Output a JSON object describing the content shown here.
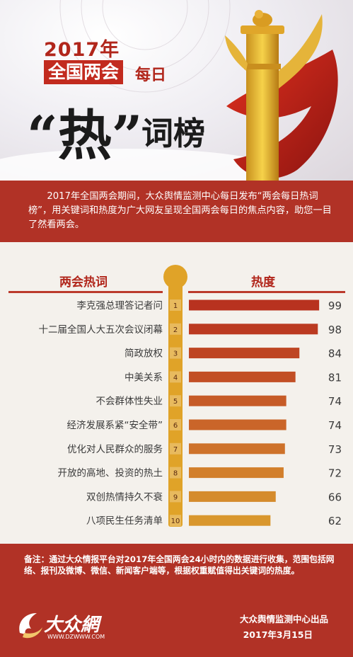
{
  "header": {
    "year_title": "2017年",
    "tag": "全国两会",
    "meiri": "每日",
    "hot_quote": "“热”",
    "cibang": "词榜"
  },
  "intro": "2017年全国两会期间，大众舆情监测中心每日发布“两会每日热词榜”，用关键词和热度为广大网友呈现全国两会每日的焦点内容，助您一目了然看两会。",
  "chart_data": {
    "type": "bar",
    "orientation": "horizontal",
    "left_header": "两会热词",
    "right_header": "热度",
    "ranks": [
      "1",
      "2",
      "3",
      "4",
      "5",
      "6",
      "7",
      "8",
      "9",
      "10"
    ],
    "categories": [
      "李克强总理答记者问",
      "十二届全国人大五次会议闭幕",
      "简政放权",
      "中美关系",
      "不会群体性失业",
      "经济发展系紧“安全带”",
      "优化对人民群众的服务",
      "开放的高地、投资的热土",
      "双创热情持久不衰",
      "八项民生任务清单"
    ],
    "values": [
      99,
      98,
      84,
      81,
      74,
      74,
      73,
      72,
      66,
      62
    ],
    "bar_colors": [
      "#b8321f",
      "#bb3a21",
      "#be4523",
      "#c24f25",
      "#c65b27",
      "#ca6529",
      "#ce722a",
      "#d27f2b",
      "#d58b2c",
      "#d9972d"
    ],
    "grid": false,
    "legend": "none"
  },
  "footer": {
    "note": "备注：通过大众情报平台对2017年全国两会24小时内的数据进行收集，范围包括网络、报刊及微博、微信、新闻客户端等，根据权重赋值得出关键词的热度。",
    "credit": "大众舆情监测中心出品",
    "date": "2017年3月15日",
    "logo_text": "大众網",
    "logo_url": "WWW.DZWWW.COM"
  }
}
